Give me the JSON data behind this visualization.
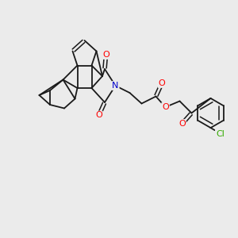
{
  "background_color": "#ebebeb",
  "bond_color": "#1a1a1a",
  "bond_width": 1.3,
  "atom_colors": {
    "O": "#ff0000",
    "N": "#0000cc",
    "Cl": "#33aa00",
    "C": "#1a1a1a"
  },
  "figsize": [
    3.0,
    3.0
  ],
  "dpi": 100
}
